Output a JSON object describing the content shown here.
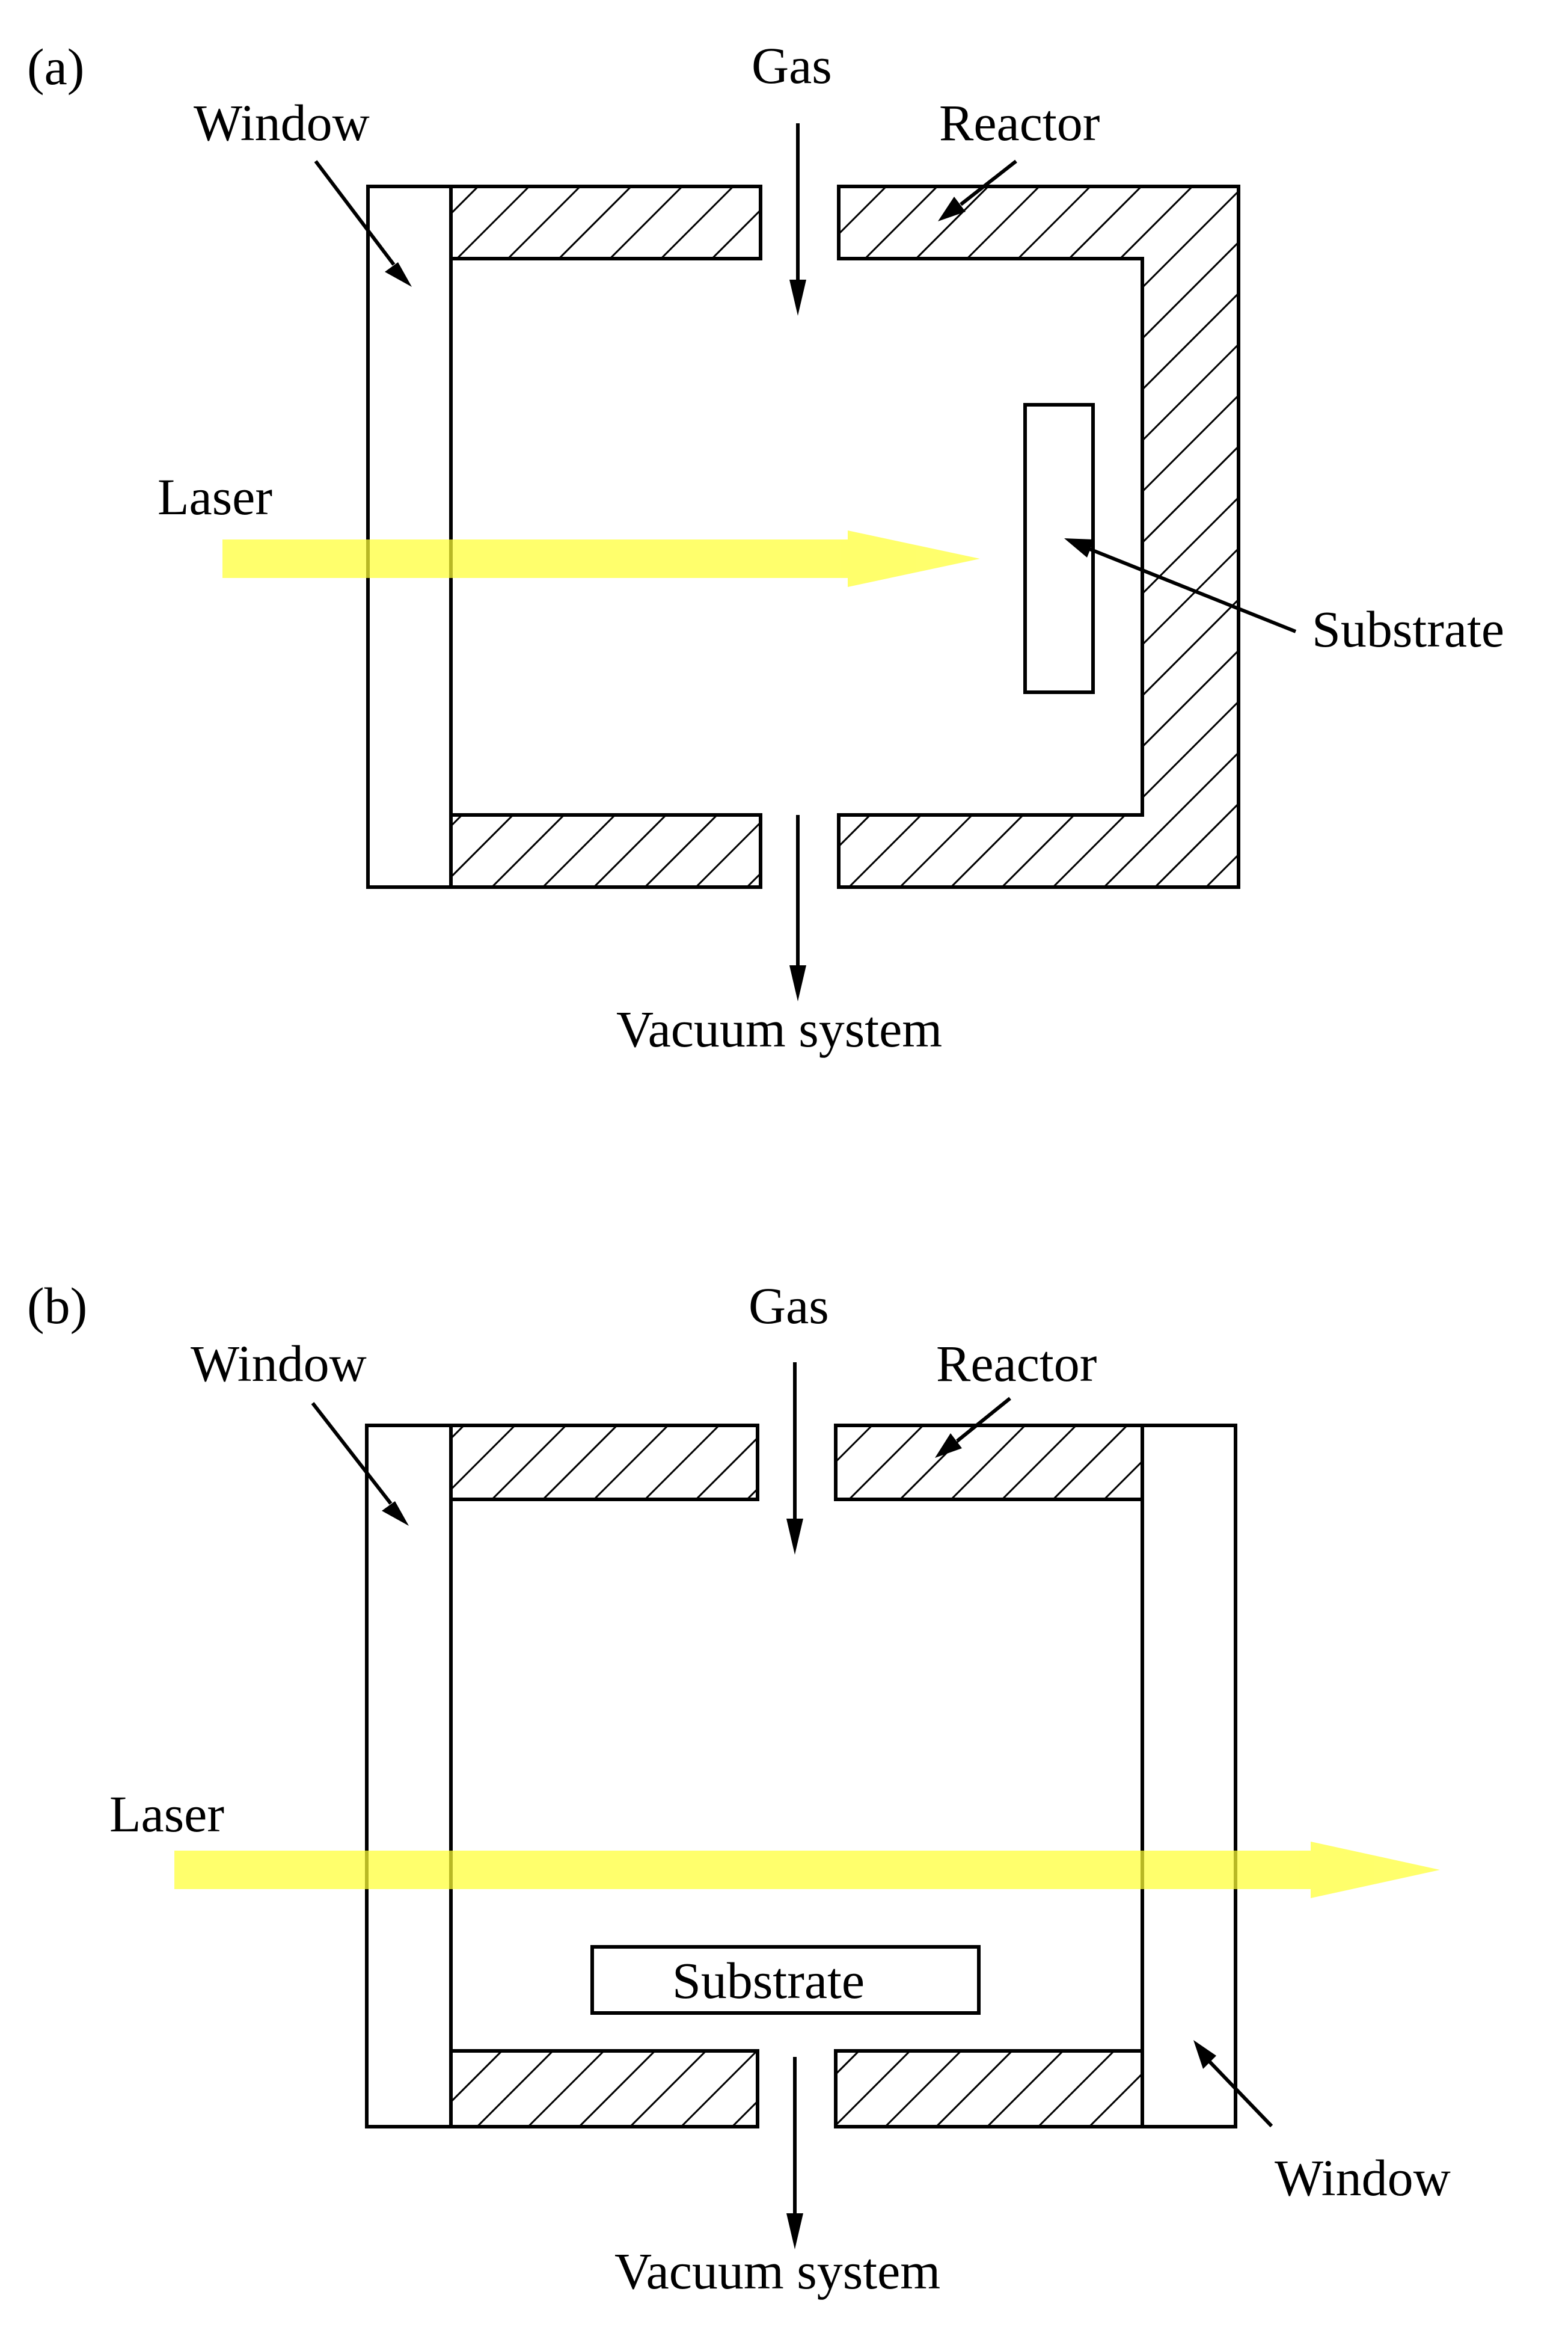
{
  "panel_a": {
    "tag": "(a)",
    "gas": "Gas",
    "window": "Window",
    "reactor": "Reactor",
    "laser": "Laser",
    "substrate": "Substrate",
    "vacuum": "Vacuum system"
  },
  "panel_b": {
    "tag": "(b)",
    "gas": "Gas",
    "window_left": "Window",
    "reactor": "Reactor",
    "laser": "Laser",
    "substrate": "Substrate",
    "window_right": "Window",
    "vacuum": "Vacuum system"
  },
  "colors": {
    "laser_beam": "#ffff33",
    "outline": "#000000",
    "background": "#ffffff"
  }
}
